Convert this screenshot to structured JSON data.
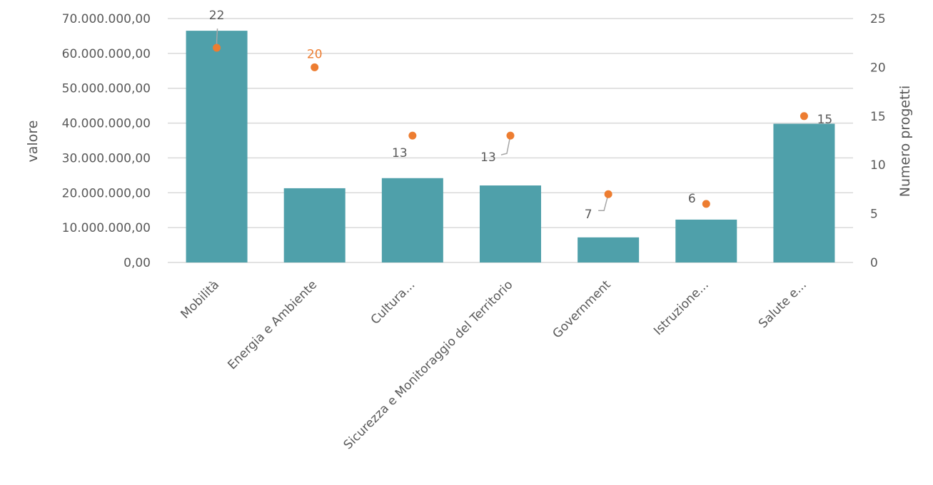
{
  "chart_data": {
    "type": "bar",
    "categories": [
      "Mobilità",
      "Energia e Ambiente",
      "Cultura...",
      "Sicurezza e Monitoraggio del Territorio",
      "Government",
      "Istruzione...",
      "Salute e..."
    ],
    "series": [
      {
        "name": "valore",
        "type": "bar",
        "axis": "left",
        "color": "#4fa0aa",
        "values": [
          66500000,
          21300000,
          24200000,
          22100000,
          7200000,
          12300000,
          39800000
        ]
      },
      {
        "name": "Numero progetti",
        "type": "scatter",
        "axis": "right",
        "color": "#ed7d31",
        "values": [
          22,
          20,
          13,
          13,
          7,
          6,
          15
        ]
      }
    ],
    "title": "",
    "ylabel": "valore",
    "y2label": "Numero progetti",
    "ylim": [
      0,
      70000000
    ],
    "y2lim": [
      0,
      25
    ],
    "y_ticks": [
      "0,00",
      "10.000.000,00",
      "20.000.000,00",
      "30.000.000,00",
      "40.000.000,00",
      "50.000.000,00",
      "60.000.000,00",
      "70.000.000,00"
    ],
    "y2_ticks": [
      "0",
      "5",
      "10",
      "15",
      "20",
      "25"
    ],
    "data_labels": [
      "22",
      "20",
      "13",
      "13",
      "7",
      "6",
      "15"
    ],
    "data_label_colors": [
      "#595959",
      "#ed7d31",
      "#595959",
      "#595959",
      "#595959",
      "#595959",
      "#595959"
    ],
    "grid": true,
    "legend": "none"
  }
}
